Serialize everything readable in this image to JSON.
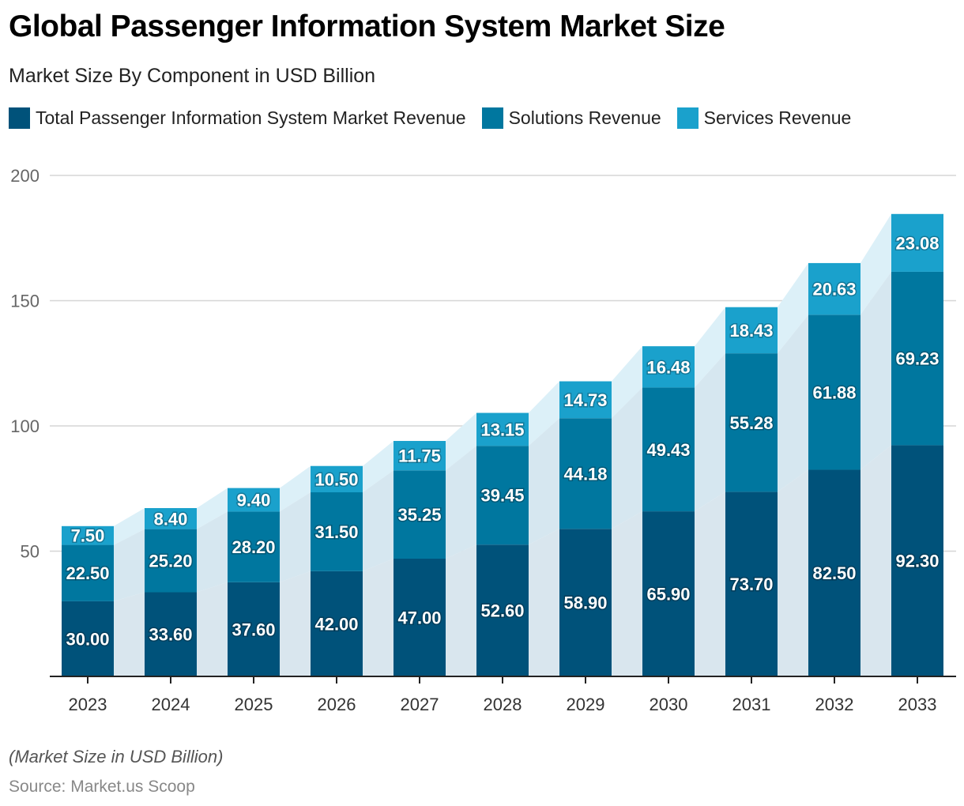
{
  "title": "Global Passenger Information System Market Size",
  "subtitle": "Market Size By Component in USD Billion",
  "note": "(Market Size in USD Billion)",
  "source": "Source: Market.us Scoop",
  "legend": [
    {
      "label": "Total Passenger Information System Market Revenue",
      "color": "#00527a"
    },
    {
      "label": "Solutions Revenue",
      "color": "#00779f"
    },
    {
      "label": "Services Revenue",
      "color": "#1aa1cc"
    }
  ],
  "chart_data": {
    "type": "bar",
    "stacked": true,
    "title": "Global Passenger Information System Market Size",
    "subtitle": "Market Size By Component in USD Billion",
    "xlabel": "",
    "ylabel": "",
    "ylim": [
      0,
      200
    ],
    "yticks": [
      50,
      100,
      150,
      200
    ],
    "grid": true,
    "legend_position": "top-left",
    "categories": [
      "2023",
      "2024",
      "2025",
      "2026",
      "2027",
      "2028",
      "2029",
      "2030",
      "2031",
      "2032",
      "2033"
    ],
    "series": [
      {
        "name": "Total Passenger Information System Market Revenue",
        "color": "#00527a",
        "values": [
          30.0,
          33.6,
          37.6,
          42.0,
          47.0,
          52.6,
          58.9,
          65.9,
          73.7,
          82.5,
          92.3
        ],
        "labels": [
          "30.00",
          "33.60",
          "37.60",
          "42.00",
          "47.00",
          "52.60",
          "58.90",
          "65.90",
          "73.70",
          "82.50",
          "92.30"
        ]
      },
      {
        "name": "Solutions Revenue",
        "color": "#00779f",
        "values": [
          22.5,
          25.2,
          28.2,
          31.5,
          35.25,
          39.45,
          44.18,
          49.43,
          55.28,
          61.88,
          69.23
        ],
        "labels": [
          "22.50",
          "25.20",
          "28.20",
          "31.50",
          "35.25",
          "39.45",
          "44.18",
          "49.43",
          "55.28",
          "61.88",
          "69.23"
        ]
      },
      {
        "name": "Services Revenue",
        "color": "#1aa1cc",
        "values": [
          7.5,
          8.4,
          9.4,
          10.5,
          11.75,
          13.15,
          14.73,
          16.48,
          18.43,
          20.63,
          23.08
        ],
        "labels": [
          "7.50",
          "8.40",
          "9.40",
          "10.50",
          "11.75",
          "13.15",
          "14.73",
          "16.48",
          "18.43",
          "20.63",
          "23.08"
        ]
      }
    ]
  }
}
